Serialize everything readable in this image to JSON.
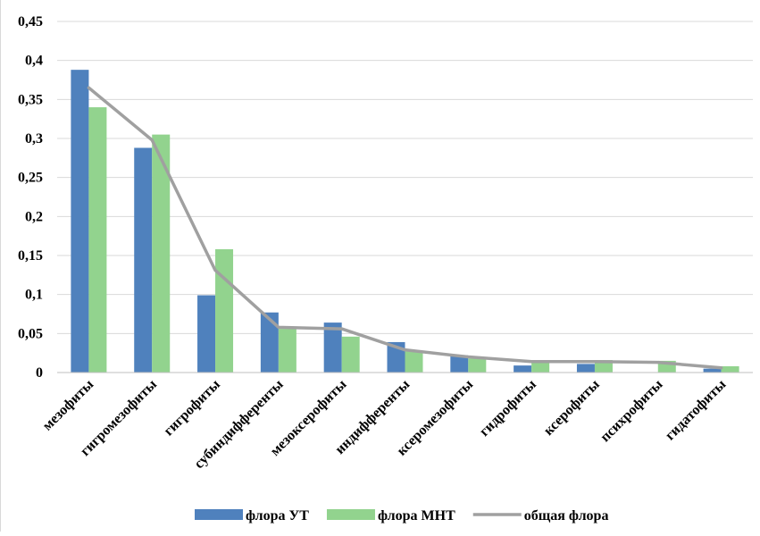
{
  "chart_data": {
    "type": "bar",
    "title": "",
    "xlabel": "",
    "ylabel": "",
    "ylim": [
      0,
      0.45
    ],
    "yticks": [
      0,
      0.05,
      0.1,
      0.15,
      0.2,
      0.25,
      0.3,
      0.35,
      0.4,
      0.45
    ],
    "ytick_labels": [
      "0",
      "0,05",
      "0,1",
      "0,15",
      "0,2",
      "0,25",
      "0,3",
      "0,35",
      "0,4",
      "0,45"
    ],
    "grid": true,
    "legend_position": "bottom",
    "categories": [
      "мезофиты",
      "гигромезофиты",
      "гигрофиты",
      "субиндифференты",
      "мезоксерофиты",
      "индифференты",
      "ксеромезофиты",
      "гидрофиты",
      "ксерофиты",
      "психрофиты",
      "гидатофиты"
    ],
    "series": [
      {
        "name": "флора УТ",
        "kind": "bar",
        "color": "#4f81bd",
        "values": [
          0.388,
          0.288,
          0.099,
          0.077,
          0.064,
          0.039,
          0.022,
          0.009,
          0.011,
          0.0,
          0.005
        ]
      },
      {
        "name": "флора МНТ",
        "kind": "bar",
        "color": "#92d38e",
        "values": [
          0.34,
          0.305,
          0.158,
          0.056,
          0.046,
          0.027,
          0.018,
          0.016,
          0.016,
          0.015,
          0.008
        ]
      },
      {
        "name": "общая флора",
        "kind": "line",
        "color": "#a0a0a0",
        "values": [
          0.365,
          0.298,
          0.131,
          0.058,
          0.056,
          0.029,
          0.02,
          0.014,
          0.014,
          0.013,
          0.006
        ]
      }
    ]
  }
}
